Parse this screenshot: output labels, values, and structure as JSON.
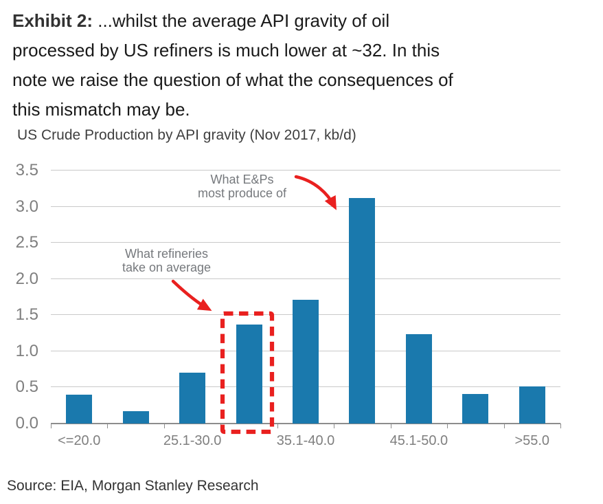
{
  "header": {
    "exhibit_label": "Exhibit 2:",
    "title_text": " ...whilst the average API gravity of oil\nprocessed by US refiners is much lower at ~32. In this\nnote we raise the question of what the consequences of\nthis mismatch may be."
  },
  "chart_data": {
    "type": "bar",
    "title": "US Crude Production by API gravity (Nov 2017, kb/d)",
    "categories": [
      "<=20.0",
      "",
      "25.1-30.0",
      "",
      "35.1-40.0",
      "",
      "45.1-50.0",
      "",
      ">55.0"
    ],
    "values": [
      0.4,
      0.17,
      0.7,
      1.37,
      1.71,
      3.12,
      1.24,
      0.41,
      0.51
    ],
    "ylim": [
      0,
      3.5
    ],
    "ytick_labels": [
      "0.0",
      "0.5",
      "1.0",
      "1.5",
      "2.0",
      "2.5",
      "3.0",
      "3.5"
    ],
    "grid": true,
    "legend": false,
    "bar_color": "#1A79AD",
    "highlighted_bar_index": 3,
    "annotations": [
      {
        "id": "eps",
        "text": "What E&Ps\nmost produce of",
        "target_bar_index": 5
      },
      {
        "id": "refineries",
        "text": "What refineries\ntake on average",
        "target_bar_index": 3
      }
    ]
  },
  "footer": {
    "source": "Source: EIA, Morgan Stanley Research"
  },
  "colors": {
    "bar_blue": "#1A79AD",
    "accent_red": "#E9201F",
    "gridline": "#C9C9C9",
    "axis_gray": "#8C8C8C",
    "label_gray": "#7F7F7F"
  }
}
